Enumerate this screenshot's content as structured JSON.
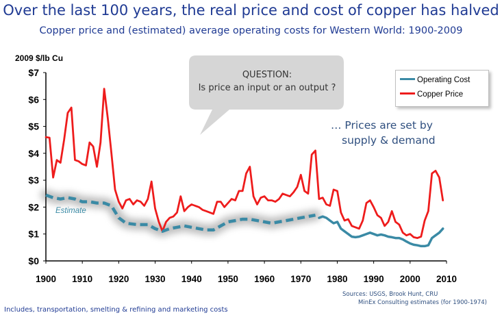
{
  "title": "Over the last 100 years, the real price and cost of copper has halved",
  "subtitle": "Copper price and (estimated) average operating costs for Western World: 1900-2009",
  "callout": {
    "line1": "QUESTION:",
    "line2": "Is price an input or an  output ?"
  },
  "note": {
    "line1": "… Prices are set by",
    "line2": "supply & demand"
  },
  "estimate_label": "Estimate",
  "sources": {
    "line1": "Sources:  USGS, Brook Hunt, CRU",
    "line2": "MinEx Consulting estimates (for 1900-1974)"
  },
  "footnote": "Includes, transportation,  smelting & refining and marketing costs",
  "colors": {
    "price": "#ee1c1c",
    "cost": "#3a8aa5",
    "title": "#1f3a93"
  },
  "chart_data": {
    "type": "line",
    "ylabel": "2009 $/lb Cu",
    "xlim": [
      1900,
      2010
    ],
    "ylim": [
      0,
      7
    ],
    "x_ticks": [
      "1900",
      "1910",
      "1920",
      "1930",
      "1940",
      "1950",
      "1960",
      "1970",
      "1980",
      "1990",
      "2000",
      "2010"
    ],
    "y_ticks": [
      "$0",
      "$1",
      "$2",
      "$3",
      "$4",
      "$5",
      "$6",
      "$7"
    ],
    "grid": false,
    "legend_position": "top-right",
    "series": [
      {
        "name": "Copper Price",
        "color": "#ee1c1c",
        "x": [
          1900,
          1901,
          1902,
          1903,
          1904,
          1905,
          1906,
          1907,
          1908,
          1909,
          1910,
          1911,
          1912,
          1913,
          1914,
          1915,
          1916,
          1917,
          1918,
          1919,
          1920,
          1921,
          1922,
          1923,
          1924,
          1925,
          1926,
          1927,
          1928,
          1929,
          1930,
          1931,
          1932,
          1933,
          1934,
          1935,
          1936,
          1937,
          1938,
          1939,
          1940,
          1941,
          1942,
          1943,
          1944,
          1945,
          1946,
          1947,
          1948,
          1949,
          1950,
          1951,
          1952,
          1953,
          1954,
          1955,
          1956,
          1957,
          1958,
          1959,
          1960,
          1961,
          1962,
          1963,
          1964,
          1965,
          1966,
          1967,
          1968,
          1969,
          1970,
          1971,
          1972,
          1973,
          1974,
          1975,
          1976,
          1977,
          1978,
          1979,
          1980,
          1981,
          1982,
          1983,
          1984,
          1985,
          1986,
          1987,
          1988,
          1989,
          1990,
          1991,
          1992,
          1993,
          1994,
          1995,
          1996,
          1997,
          1998,
          1999,
          2000,
          2001,
          2002,
          2003,
          2004,
          2005,
          2006,
          2007,
          2008,
          2009
        ],
        "values": [
          4.6,
          4.58,
          3.1,
          3.75,
          3.65,
          4.5,
          5.5,
          5.7,
          3.75,
          3.7,
          3.6,
          3.55,
          4.4,
          4.25,
          3.5,
          4.4,
          6.4,
          5.3,
          4.0,
          2.65,
          2.2,
          1.95,
          2.25,
          2.3,
          2.1,
          2.25,
          2.2,
          2.05,
          2.3,
          2.95,
          1.95,
          1.45,
          1.1,
          1.45,
          1.6,
          1.65,
          1.8,
          2.4,
          1.85,
          2.0,
          2.1,
          2.05,
          2.0,
          1.9,
          1.85,
          1.8,
          1.75,
          2.2,
          2.2,
          2.0,
          2.15,
          2.3,
          2.25,
          2.6,
          2.6,
          3.25,
          3.5,
          2.4,
          2.1,
          2.35,
          2.4,
          2.25,
          2.25,
          2.2,
          2.3,
          2.5,
          2.45,
          2.4,
          2.55,
          2.75,
          3.2,
          2.6,
          2.5,
          3.95,
          4.1,
          2.3,
          2.35,
          2.1,
          2.05,
          2.65,
          2.6,
          1.8,
          1.5,
          1.55,
          1.3,
          1.25,
          1.2,
          1.5,
          2.15,
          2.25,
          2.0,
          1.7,
          1.6,
          1.3,
          1.45,
          1.85,
          1.45,
          1.35,
          1.05,
          0.95,
          1.0,
          0.88,
          0.85,
          0.9,
          1.5,
          1.85,
          3.25,
          3.35,
          3.1,
          2.25
        ]
      },
      {
        "name": "Operating Cost",
        "color": "#3a8aa5",
        "x": [
          1975,
          1976,
          1977,
          1978,
          1979,
          1980,
          1981,
          1982,
          1983,
          1984,
          1985,
          1986,
          1987,
          1988,
          1989,
          1990,
          1991,
          1992,
          1993,
          1994,
          1995,
          1996,
          1997,
          1998,
          1999,
          2000,
          2001,
          2002,
          2003,
          2004,
          2005,
          2006,
          2007,
          2008,
          2009
        ],
        "values": [
          1.6,
          1.65,
          1.6,
          1.5,
          1.4,
          1.45,
          1.2,
          1.1,
          1.0,
          0.9,
          0.88,
          0.9,
          0.95,
          1.0,
          1.05,
          1.0,
          0.95,
          0.98,
          0.95,
          0.9,
          0.88,
          0.85,
          0.85,
          0.8,
          0.72,
          0.65,
          0.6,
          0.58,
          0.55,
          0.55,
          0.58,
          0.85,
          0.95,
          1.05,
          1.2
        ]
      },
      {
        "name": "Estimate",
        "color": "#3a8aa5",
        "dashed": true,
        "x": [
          1900,
          1902,
          1904,
          1906,
          1908,
          1910,
          1912,
          1914,
          1916,
          1918,
          1920,
          1922,
          1925,
          1928,
          1930,
          1932,
          1934,
          1936,
          1938,
          1940,
          1942,
          1944,
          1946,
          1948,
          1950,
          1952,
          1954,
          1956,
          1958,
          1960,
          1962,
          1964,
          1966,
          1968,
          1970,
          1972,
          1974
        ],
        "values": [
          2.45,
          2.35,
          2.3,
          2.35,
          2.3,
          2.2,
          2.2,
          2.15,
          2.15,
          2.05,
          1.6,
          1.4,
          1.35,
          1.35,
          1.2,
          1.1,
          1.2,
          1.25,
          1.3,
          1.25,
          1.2,
          1.15,
          1.15,
          1.3,
          1.45,
          1.5,
          1.55,
          1.55,
          1.5,
          1.45,
          1.4,
          1.45,
          1.5,
          1.55,
          1.6,
          1.65,
          1.7
        ]
      }
    ]
  }
}
